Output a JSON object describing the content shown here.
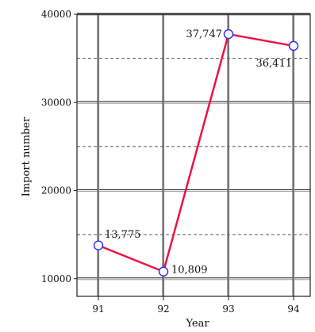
{
  "chart_data": {
    "type": "line",
    "xlabel": "Year",
    "ylabel": "Import number",
    "categories": [
      "91",
      "92",
      "93",
      "94"
    ],
    "series": [
      {
        "values": [
          13775,
          10809,
          37747,
          36411
        ],
        "data_labels": [
          "13,775",
          "10,809",
          "37,747",
          "36,411"
        ],
        "color": "#ee1144",
        "marker_color": "#3333ee"
      }
    ],
    "ylim": [
      8000,
      40000
    ],
    "yticks": [
      10000,
      20000,
      30000,
      40000
    ],
    "ytick_labels": [
      "10000",
      "20000",
      "30000",
      "40000"
    ],
    "minor_gridlines": [
      15000,
      25000,
      35000
    ],
    "grid": true,
    "legend": "none"
  }
}
